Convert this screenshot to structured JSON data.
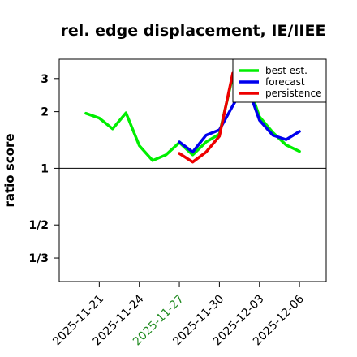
{
  "chart_data": {
    "type": "line",
    "title": "rel. edge displacement, IE/IIEE",
    "ylabel": "ratio score",
    "y_scale": "log",
    "ylim": [
      0.25,
      3.8
    ],
    "y_ticks": [
      {
        "value": 3,
        "label": "3"
      },
      {
        "value": 2,
        "label": "2"
      },
      {
        "value": 1,
        "label": "1"
      },
      {
        "value": 0.5,
        "label": "1/2"
      },
      {
        "value": 0.3333,
        "label": "1/3"
      }
    ],
    "reference_line": 1,
    "xlim": [
      "2025-11-18",
      "2025-12-08"
    ],
    "x_ticks": [
      {
        "value": "2025-11-21",
        "label": "2025-11-21",
        "color": "#000000"
      },
      {
        "value": "2025-11-24",
        "label": "2025-11-24",
        "color": "#000000"
      },
      {
        "value": "2025-11-27",
        "label": "2025-11-27",
        "color": "#228B22"
      },
      {
        "value": "2025-11-30",
        "label": "2025-11-30",
        "color": "#000000"
      },
      {
        "value": "2025-12-03",
        "label": "2025-12-03",
        "color": "#000000"
      },
      {
        "value": "2025-12-06",
        "label": "2025-12-06",
        "color": "#000000"
      }
    ],
    "legend_position": "top-right",
    "series": [
      {
        "name": "best est.",
        "color": "#00ee00",
        "x": [
          "2025-11-20",
          "2025-11-21",
          "2025-11-22",
          "2025-11-23",
          "2025-11-24",
          "2025-11-25",
          "2025-11-26",
          "2025-11-27",
          "2025-11-28",
          "2025-11-29",
          "2025-11-30",
          "2025-12-01",
          "2025-12-02",
          "2025-12-03",
          "2025-12-04",
          "2025-12-05",
          "2025-12-06"
        ],
        "y": [
          1.96,
          1.85,
          1.62,
          1.97,
          1.32,
          1.1,
          1.18,
          1.37,
          1.18,
          1.38,
          1.52,
          3.1,
          3.02,
          1.88,
          1.55,
          1.33,
          1.23
        ]
      },
      {
        "name": "forecast",
        "color": "#0000ee",
        "x": [
          "2025-11-27",
          "2025-11-28",
          "2025-11-29",
          "2025-11-30",
          "2025-12-01",
          "2025-12-02",
          "2025-12-03",
          "2025-12-04",
          "2025-12-05",
          "2025-12-06"
        ],
        "y": [
          1.38,
          1.22,
          1.5,
          1.6,
          2.15,
          2.85,
          1.8,
          1.5,
          1.42,
          1.57
        ]
      },
      {
        "name": "persistence",
        "color": "#ee0000",
        "x": [
          "2025-11-27",
          "2025-11-28",
          "2025-11-29",
          "2025-11-30",
          "2025-12-01"
        ],
        "y": [
          1.2,
          1.08,
          1.22,
          1.48,
          3.2
        ]
      }
    ]
  }
}
